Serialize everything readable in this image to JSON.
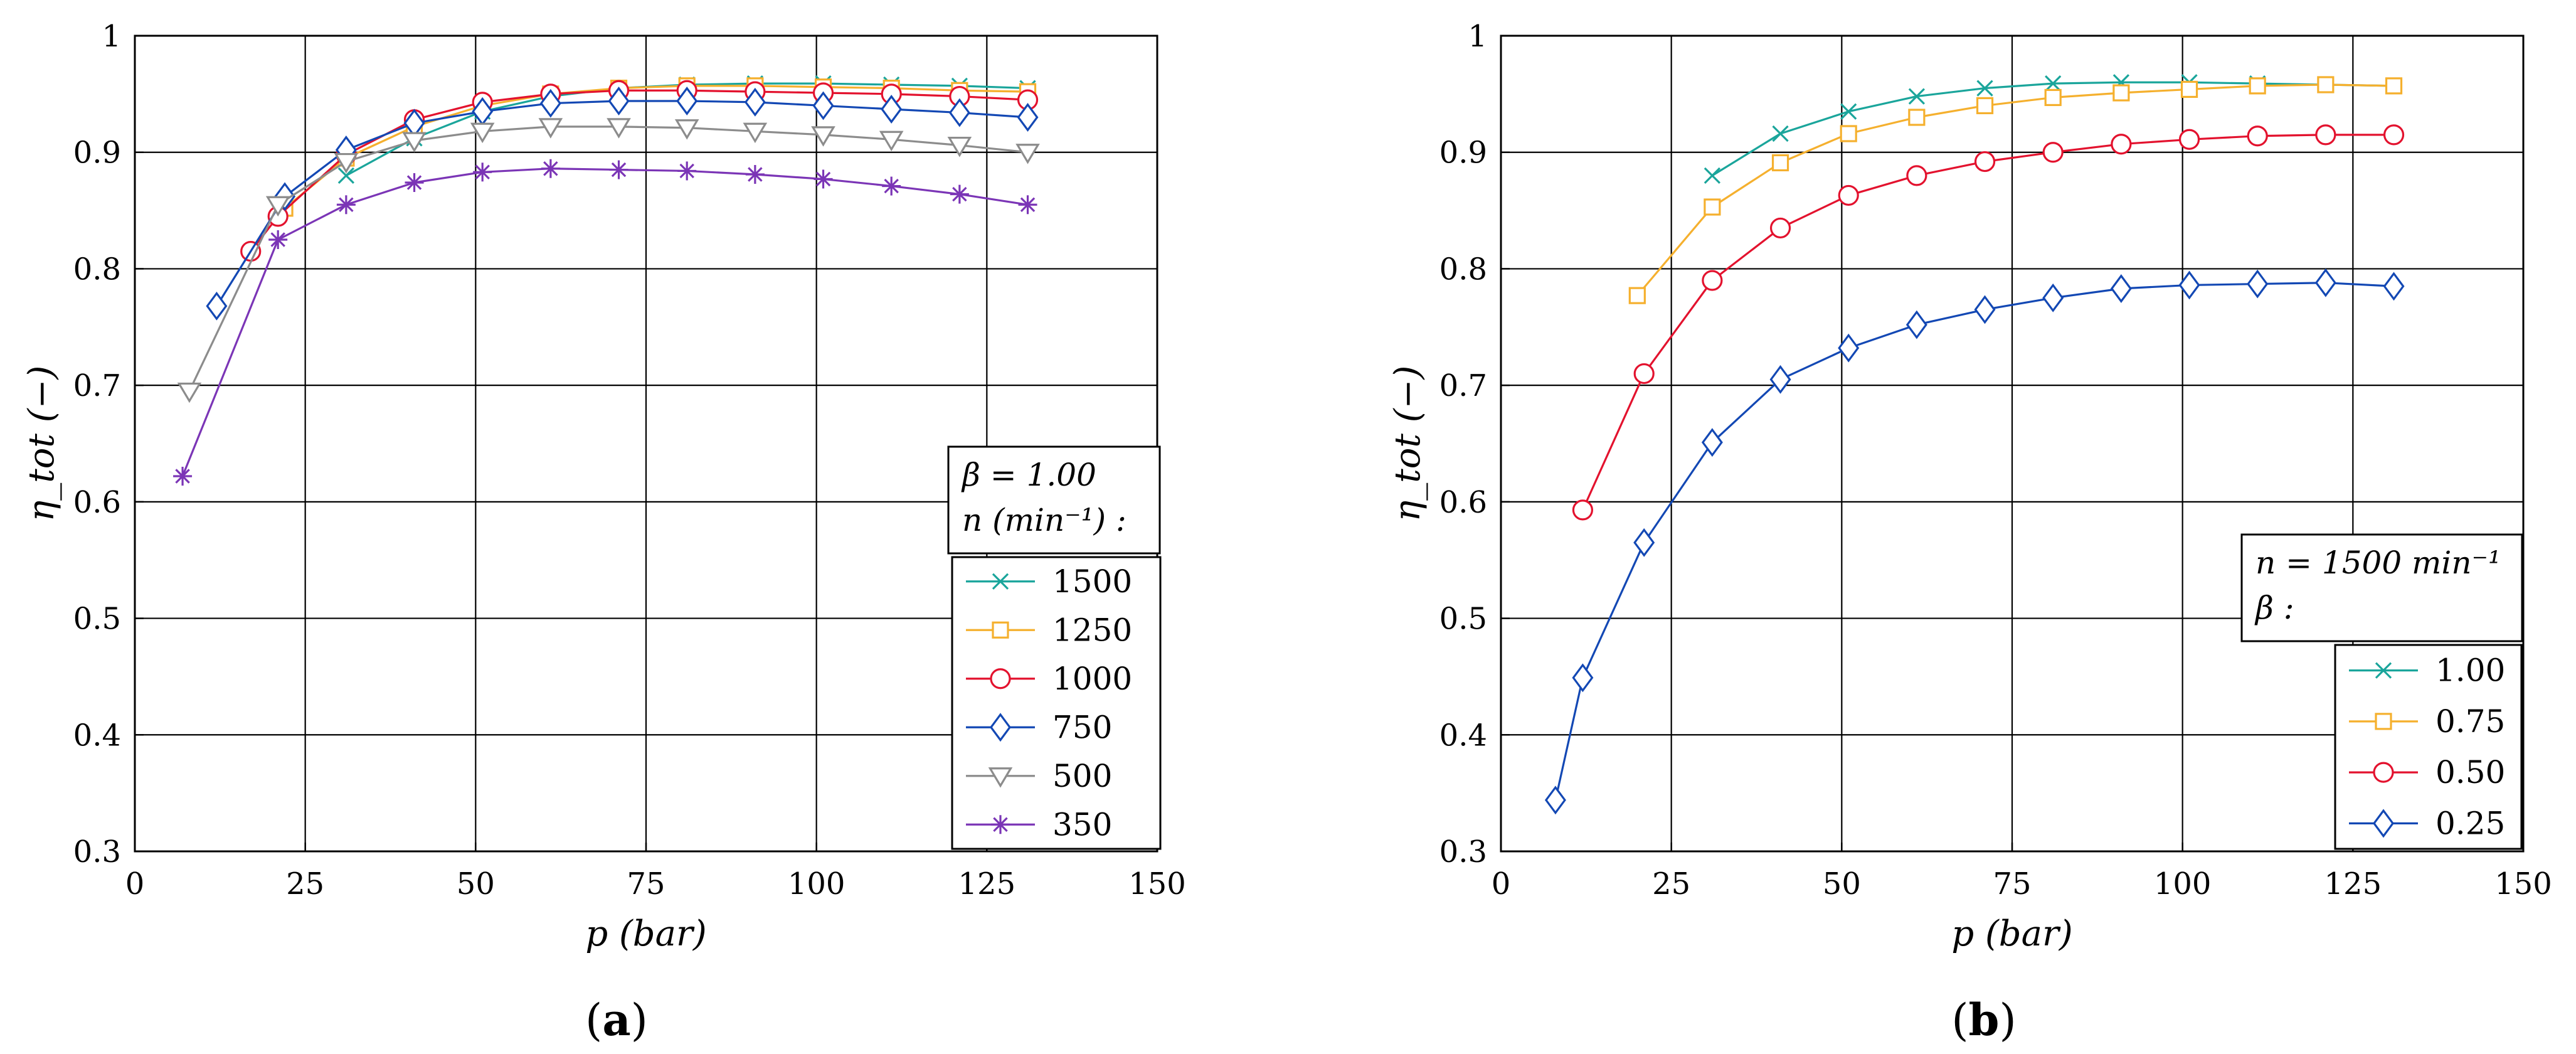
{
  "figure": {
    "panels": [
      {
        "label_open": "(",
        "label_letter": "a",
        "label_close": ")"
      },
      {
        "label_open": "(",
        "label_letter": "b",
        "label_close": ")"
      }
    ]
  },
  "chart_data": [
    {
      "type": "line",
      "title": "",
      "xlabel": "p (bar)",
      "ylabel": "η_tot (−)",
      "xlim": [
        0,
        150
      ],
      "ylim": [
        0.3,
        1.0
      ],
      "xticks": [
        0,
        25,
        50,
        75,
        100,
        125,
        150
      ],
      "yticks": [
        0.3,
        0.4,
        0.5,
        0.6,
        0.7,
        0.8,
        0.9,
        1.0
      ],
      "grid": true,
      "legend_position": "bottom-right",
      "legend_title": [
        "β = 1.00",
        "n (min⁻¹) :"
      ],
      "series": [
        {
          "name": "1500",
          "color": "#1aa59b",
          "marker": "x",
          "x": [
            31,
            41,
            51,
            61,
            71,
            81,
            91,
            101,
            111,
            121,
            131
          ],
          "y": [
            0.88,
            0.912,
            0.935,
            0.948,
            0.955,
            0.958,
            0.959,
            0.959,
            0.958,
            0.957,
            0.955
          ]
        },
        {
          "name": "1250",
          "color": "#f5b02e",
          "marker": "square",
          "x": [
            22,
            31,
            41,
            51,
            61,
            71,
            81,
            91,
            101,
            111,
            121,
            131
          ],
          "y": [
            0.852,
            0.895,
            0.922,
            0.94,
            0.95,
            0.955,
            0.957,
            0.957,
            0.956,
            0.955,
            0.953,
            0.952
          ]
        },
        {
          "name": "1000",
          "color": "#e3122e",
          "marker": "circle",
          "x": [
            17,
            21,
            31,
            41,
            51,
            61,
            71,
            81,
            91,
            101,
            111,
            121,
            131
          ],
          "y": [
            0.815,
            0.845,
            0.898,
            0.928,
            0.943,
            0.95,
            0.953,
            0.953,
            0.952,
            0.951,
            0.95,
            0.948,
            0.945
          ]
        },
        {
          "name": "750",
          "color": "#1348b4",
          "marker": "diamond",
          "x": [
            12,
            22,
            31,
            41,
            51,
            61,
            71,
            81,
            91,
            101,
            111,
            121,
            131
          ],
          "y": [
            0.768,
            0.862,
            0.902,
            0.925,
            0.935,
            0.942,
            0.944,
            0.944,
            0.943,
            0.94,
            0.937,
            0.934,
            0.93
          ]
        },
        {
          "name": "500",
          "color": "#8c8c8c",
          "marker": "triangle-down",
          "x": [
            8,
            21,
            31,
            41,
            51,
            61,
            71,
            81,
            91,
            101,
            111,
            121,
            131
          ],
          "y": [
            0.695,
            0.855,
            0.892,
            0.91,
            0.918,
            0.922,
            0.922,
            0.921,
            0.918,
            0.915,
            0.911,
            0.906,
            0.9
          ]
        },
        {
          "name": "350",
          "color": "#7b35b6",
          "marker": "asterisk",
          "x": [
            7,
            21,
            31,
            41,
            51,
            61,
            71,
            81,
            91,
            101,
            111,
            121,
            131
          ],
          "y": [
            0.622,
            0.825,
            0.855,
            0.874,
            0.883,
            0.886,
            0.885,
            0.884,
            0.881,
            0.877,
            0.871,
            0.864,
            0.855
          ]
        }
      ]
    },
    {
      "type": "line",
      "title": "",
      "xlabel": "p (bar)",
      "ylabel": "η_tot (−)",
      "xlim": [
        0,
        150
      ],
      "ylim": [
        0.3,
        1.0
      ],
      "xticks": [
        0,
        25,
        50,
        75,
        100,
        125,
        150
      ],
      "yticks": [
        0.3,
        0.4,
        0.5,
        0.6,
        0.7,
        0.8,
        0.9,
        1.0
      ],
      "grid": true,
      "legend_position": "bottom-right",
      "legend_title": [
        "n = 1500 min⁻¹",
        "β :"
      ],
      "series": [
        {
          "name": "1.00",
          "color": "#1aa59b",
          "marker": "x",
          "x": [
            31,
            41,
            51,
            61,
            71,
            81,
            91,
            101,
            111,
            121,
            131
          ],
          "y": [
            0.88,
            0.916,
            0.935,
            0.948,
            0.955,
            0.959,
            0.96,
            0.96,
            0.959,
            0.958,
            0.957
          ]
        },
        {
          "name": "0.75",
          "color": "#f5b02e",
          "marker": "square",
          "x": [
            20,
            31,
            41,
            51,
            61,
            71,
            81,
            91,
            101,
            111,
            121,
            131
          ],
          "y": [
            0.777,
            0.853,
            0.891,
            0.916,
            0.93,
            0.94,
            0.947,
            0.951,
            0.954,
            0.957,
            0.958,
            0.957
          ]
        },
        {
          "name": "0.50",
          "color": "#e3122e",
          "marker": "circle",
          "x": [
            12,
            21,
            31,
            41,
            51,
            61,
            71,
            81,
            91,
            101,
            111,
            121,
            131
          ],
          "y": [
            0.593,
            0.71,
            0.79,
            0.835,
            0.863,
            0.88,
            0.892,
            0.9,
            0.907,
            0.911,
            0.914,
            0.915,
            0.915
          ]
        },
        {
          "name": "0.25",
          "color": "#1348b4",
          "marker": "diamond",
          "x": [
            8,
            12,
            21,
            31,
            41,
            51,
            61,
            71,
            81,
            91,
            101,
            111,
            121,
            131
          ],
          "y": [
            0.344,
            0.449,
            0.565,
            0.651,
            0.705,
            0.732,
            0.752,
            0.765,
            0.775,
            0.783,
            0.786,
            0.787,
            0.788,
            0.785
          ]
        }
      ]
    }
  ]
}
